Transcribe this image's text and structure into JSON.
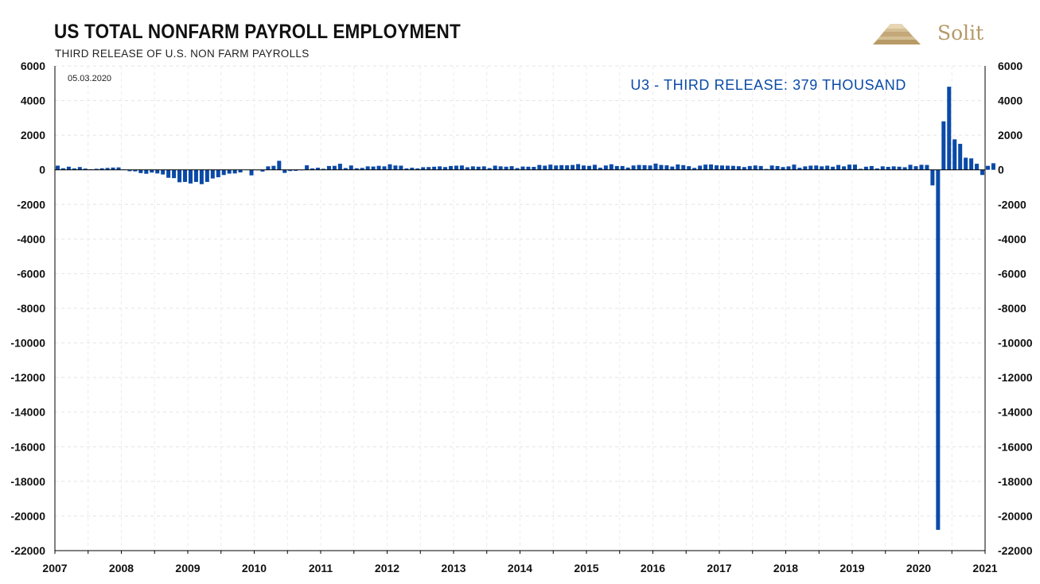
{
  "header": {
    "title": "US TOTAL NONFARM PAYROLL EMPLOYMENT",
    "subtitle": "THIRD RELEASE OF U.S. NON FARM PAYROLLS",
    "logo_text": "Solit"
  },
  "chart_data": {
    "type": "bar",
    "date_label": "05.03.2020",
    "annotation": "U3 - THIRD RELEASE: 379 THOUSAND",
    "ylim": [
      -22000,
      6000
    ],
    "ytick_labels": [
      "6000",
      "4000",
      "2000",
      "0",
      "-2000",
      "-4000",
      "-6000",
      "-8000",
      "-10000",
      "-12000",
      "-14000",
      "-16000",
      "-18000",
      "-20000",
      "-22000"
    ],
    "xtick_labels": [
      "2007",
      "2008",
      "2009",
      "2010",
      "2011",
      "2012",
      "2013",
      "2014",
      "2015",
      "2016",
      "2017",
      "2018",
      "2019",
      "2020",
      "2021"
    ],
    "grid": true,
    "bar_color": "#0a4aa8",
    "start_month": "2007-01",
    "values": [
      240,
      90,
      180,
      80,
      160,
      70,
      30,
      60,
      90,
      110,
      130,
      140,
      20,
      -80,
      -90,
      -190,
      -230,
      -160,
      -210,
      -270,
      -460,
      -480,
      -720,
      -700,
      -790,
      -700,
      -830,
      -700,
      -500,
      -430,
      -300,
      -220,
      -210,
      -150,
      10,
      -320,
      -20,
      -100,
      200,
      230,
      520,
      -180,
      -70,
      -60,
      -30,
      260,
      80,
      120,
      60,
      220,
      230,
      350,
      100,
      250,
      90,
      110,
      200,
      190,
      230,
      200,
      320,
      250,
      240,
      80,
      120,
      80,
      150,
      160,
      180,
      200,
      160,
      220,
      240,
      250,
      150,
      200,
      180,
      200,
      100,
      240,
      200,
      180,
      210,
      100,
      190,
      180,
      170,
      280,
      240,
      300,
      250,
      270,
      260,
      280,
      330,
      250,
      230,
      290,
      120,
      250,
      320,
      220,
      220,
      130,
      250,
      280,
      270,
      250,
      360,
      280,
      260,
      190,
      310,
      270,
      210,
      110,
      240,
      300,
      310,
      260,
      250,
      240,
      230,
      210,
      160,
      220,
      250,
      220,
      50,
      250,
      220,
      160,
      200,
      300,
      120,
      200,
      240,
      250,
      200,
      240,
      180,
      280,
      200,
      300,
      300,
      60,
      180,
      220,
      80,
      200,
      170,
      200,
      180,
      150,
      290,
      210,
      290,
      280,
      -900,
      -20800,
      2800,
      4800,
      1760,
      1500,
      700,
      660,
      350,
      -300,
      230,
      380
    ]
  }
}
